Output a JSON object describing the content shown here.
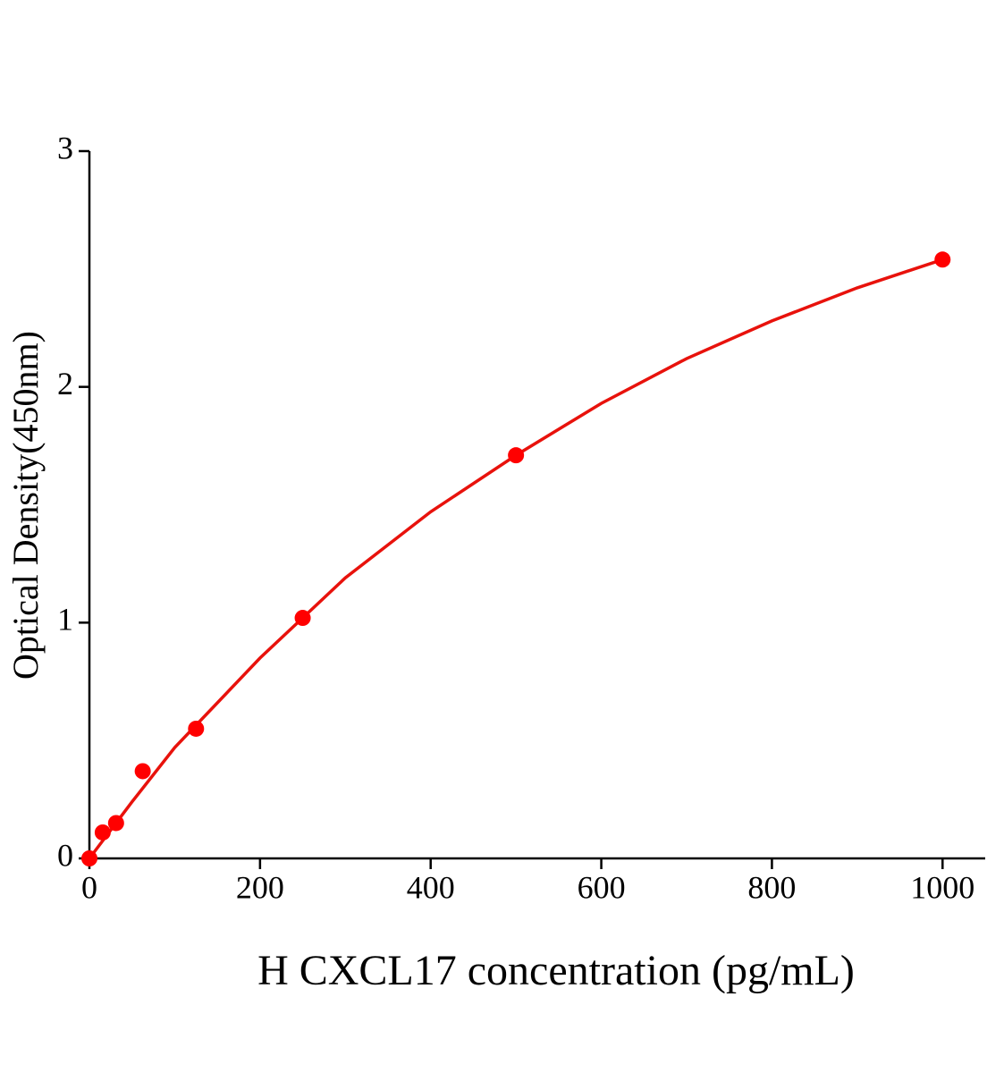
{
  "chart_data": {
    "type": "scatter",
    "x_label": "H CXCL17 concentration (pg/mL)",
    "y_label": "Optical Density(450nm)",
    "series": [
      {
        "type": "scatter",
        "color": "#ff0000",
        "x": [
          0,
          15.6,
          31.25,
          62.5,
          125,
          250,
          500,
          1000
        ],
        "values": [
          0,
          0.11,
          0.15,
          0.37,
          0.55,
          1.02,
          1.71,
          2.54
        ]
      },
      {
        "type": "line",
        "color": "#e8120c",
        "x": [
          0,
          50,
          100,
          200,
          300,
          400,
          500,
          600,
          700,
          800,
          900,
          1000
        ],
        "values": [
          0,
          0.24,
          0.47,
          0.85,
          1.19,
          1.47,
          1.71,
          1.93,
          2.12,
          2.28,
          2.42,
          2.54
        ]
      }
    ],
    "xlim": [
      0,
      1050
    ],
    "xticks": [
      0,
      200,
      400,
      600,
      800,
      1000
    ],
    "ylim": [
      0,
      3
    ],
    "yticks": [
      0,
      1,
      2,
      3
    ]
  }
}
